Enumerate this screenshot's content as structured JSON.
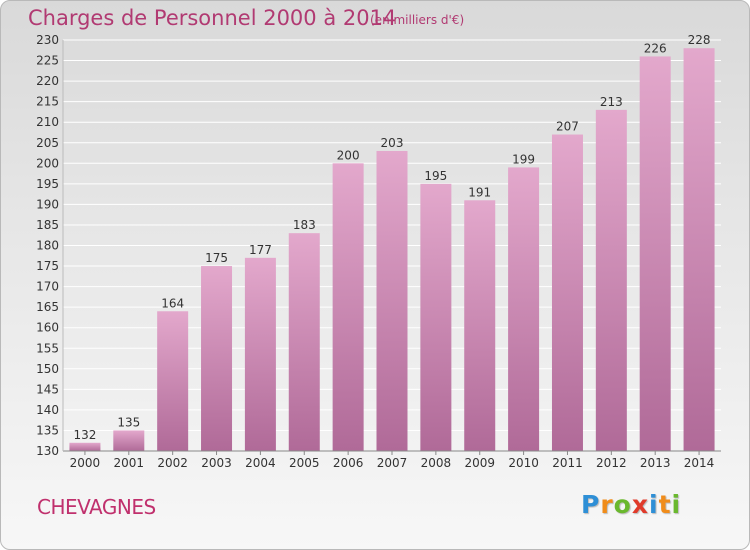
{
  "page": {
    "title": "Charges de Personnel 2000 à 2014",
    "subtitle": "(en milliers d'€)",
    "city": "CHEVAGNES",
    "logo": {
      "text": "Proxiti",
      "letters": [
        {
          "char": "P",
          "color": "#2e8fd6"
        },
        {
          "char": "r",
          "color": "#f08c1a"
        },
        {
          "char": "o",
          "color": "#6ab82e"
        },
        {
          "char": "x",
          "color": "#e03a2a"
        },
        {
          "char": "i",
          "color": "#2e8fd6"
        },
        {
          "char": "t",
          "color": "#f08c1a"
        },
        {
          "char": "i",
          "color": "#6ab82e"
        }
      ]
    }
  },
  "colors": {
    "title": "#b13a72",
    "bar_top": "#e3a8cc",
    "bar_bottom": "#b06a98",
    "gridline": "#ffffff"
  },
  "chart_data": {
    "type": "bar",
    "title": "Charges de Personnel 2000 à 2014",
    "subtitle": "(en milliers d'€)",
    "xlabel": "",
    "ylabel": "",
    "categories": [
      "2000",
      "2001",
      "2002",
      "2003",
      "2004",
      "2005",
      "2006",
      "2007",
      "2008",
      "2009",
      "2010",
      "2011",
      "2012",
      "2013",
      "2014"
    ],
    "values": [
      132,
      135,
      164,
      175,
      177,
      183,
      200,
      203,
      195,
      191,
      199,
      207,
      213,
      226,
      228
    ],
    "ylim": [
      130,
      230
    ],
    "ytick_step": 5,
    "grid": true,
    "data_labels": true
  }
}
